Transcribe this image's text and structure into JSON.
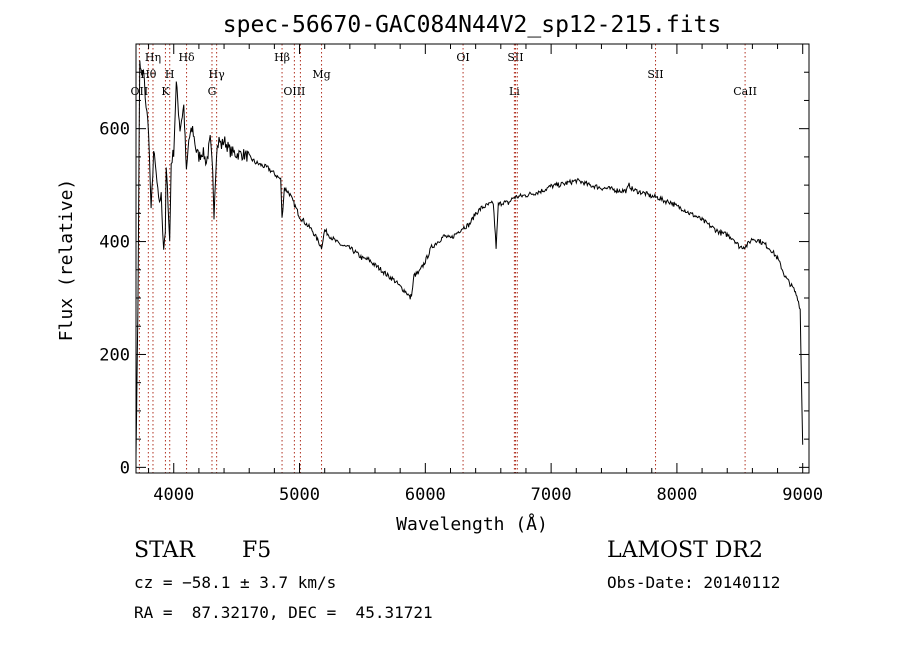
{
  "chart_data": {
    "type": "line",
    "title": "spec-56670-GAC084N44V2_sp12-215.fits",
    "xlabel": "Wavelength (Å)",
    "ylabel": "Flux (relative)",
    "xlim": [
      3700,
      9050
    ],
    "ylim": [
      -10,
      750
    ],
    "xticks": [
      4000,
      5000,
      6000,
      7000,
      8000,
      9000
    ],
    "yticks": [
      0,
      200,
      400,
      600
    ],
    "grid": false,
    "series": [
      {
        "color": "#000000",
        "x": [
          3700,
          3715,
          3730,
          3745,
          3760,
          3780,
          3800,
          3820,
          3840,
          3860,
          3880,
          3900,
          3920,
          3933,
          3940,
          3955,
          3968,
          3980,
          4000,
          4020,
          4050,
          4080,
          4101,
          4120,
          4150,
          4180,
          4200,
          4230,
          4260,
          4290,
          4310,
          4320,
          4340,
          4360,
          4380,
          4400,
          4450,
          4500,
          4550,
          4600,
          4650,
          4700,
          4750,
          4800,
          4850,
          4861,
          4880,
          4920,
          4960,
          5000,
          5050,
          5100,
          5150,
          5175,
          5200,
          5250,
          5300,
          5350,
          5400,
          5450,
          5500,
          5550,
          5600,
          5650,
          5700,
          5750,
          5800,
          5850,
          5880,
          5895,
          5910,
          5950,
          6000,
          6050,
          6100,
          6150,
          6200,
          6250,
          6300,
          6350,
          6400,
          6450,
          6500,
          6540,
          6563,
          6580,
          6620,
          6660,
          6700,
          6750,
          6800,
          6850,
          6900,
          6950,
          7000,
          7050,
          7100,
          7150,
          7200,
          7250,
          7300,
          7350,
          7400,
          7450,
          7500,
          7550,
          7600,
          7620,
          7650,
          7700,
          7750,
          7800,
          7850,
          7900,
          7950,
          8000,
          8050,
          8100,
          8150,
          8200,
          8250,
          8300,
          8350,
          8400,
          8450,
          8500,
          8550,
          8600,
          8650,
          8700,
          8750,
          8800,
          8830,
          8860,
          8900,
          8930,
          8960,
          8980,
          8990,
          9000
        ],
        "y": [
          20,
          280,
          720,
          690,
          700,
          640,
          600,
          450,
          560,
          520,
          470,
          480,
          390,
          420,
          530,
          470,
          400,
          540,
          560,
          680,
          600,
          640,
          520,
          580,
          600,
          560,
          550,
          560,
          540,
          580,
          520,
          450,
          560,
          580,
          570,
          580,
          560,
          555,
          555,
          550,
          540,
          535,
          530,
          520,
          510,
          440,
          495,
          485,
          465,
          445,
          432,
          420,
          400,
          390,
          420,
          408,
          398,
          392,
          388,
          380,
          370,
          368,
          358,
          350,
          340,
          332,
          320,
          310,
          300,
          310,
          340,
          345,
          365,
          390,
          400,
          410,
          405,
          415,
          425,
          430,
          450,
          460,
          465,
          468,
          390,
          465,
          470,
          468,
          478,
          480,
          482,
          485,
          488,
          492,
          498,
          500,
          502,
          505,
          508,
          505,
          500,
          498,
          495,
          494,
          492,
          490,
          490,
          500,
          492,
          488,
          485,
          480,
          478,
          472,
          470,
          462,
          458,
          450,
          445,
          438,
          430,
          422,
          415,
          412,
          405,
          390,
          392,
          405,
          402,
          395,
          385,
          370,
          355,
          338,
          325,
          315,
          300,
          280,
          150,
          40
        ]
      }
    ],
    "lines": [
      {
        "name": "OII",
        "x": 3727,
        "row": 3
      },
      {
        "name": "Hθ",
        "x": 3798,
        "row": 2
      },
      {
        "name": "Hη",
        "x": 3835,
        "row": 1
      },
      {
        "name": "K",
        "x": 3934,
        "row": 3
      },
      {
        "name": "H",
        "x": 3968,
        "row": 2
      },
      {
        "name": "Hδ",
        "x": 4102,
        "row": 1
      },
      {
        "name": "G",
        "x": 4304,
        "row": 3
      },
      {
        "name": "Hγ",
        "x": 4341,
        "row": 2
      },
      {
        "name": "Hβ",
        "x": 4861,
        "row": 1
      },
      {
        "name": "OIII",
        "x": 4959,
        "row": 3
      },
      {
        "name": "",
        "x": 5007,
        "row": 3
      },
      {
        "name": "Mg",
        "x": 5175,
        "row": 2
      },
      {
        "name": "OI",
        "x": 6300,
        "row": 1
      },
      {
        "name": "Li",
        "x": 6708,
        "row": 3
      },
      {
        "name": "SII",
        "x": 6717,
        "row": 1
      },
      {
        "name": "",
        "x": 6731,
        "row": 1
      },
      {
        "name": "SII",
        "x": 7830,
        "row": 2
      },
      {
        "name": "CaII",
        "x": 8542,
        "row": 3
      }
    ]
  },
  "info": {
    "class_label": "STAR",
    "subclass": "F5",
    "survey": "LAMOST DR2",
    "cz": "cz = −58.1 ± 3.7 km/s",
    "obs_date": "Obs-Date: 20140112",
    "coords": "RA =  87.32170, DEC =  45.31721"
  }
}
